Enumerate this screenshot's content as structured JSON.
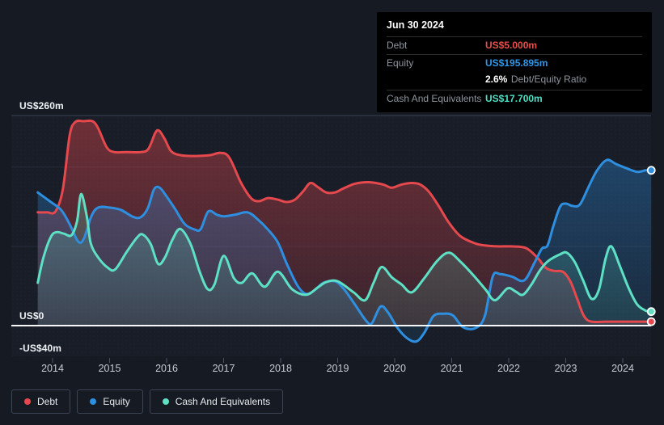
{
  "tooltip": {
    "date": "Jun 30 2024",
    "debt_label": "Debt",
    "debt_value": "US$5.000m",
    "equity_label": "Equity",
    "equity_value": "US$195.895m",
    "ratio_value": "2.6%",
    "ratio_label": "Debt/Equity Ratio",
    "cash_label": "Cash And Equivalents",
    "cash_value": "US$17.700m"
  },
  "axis": {
    "y_top_label": "US$260m",
    "y_zero_label": "US$0",
    "y_neg_label": "-US$40m",
    "years": [
      "2014",
      "2015",
      "2016",
      "2017",
      "2018",
      "2019",
      "2020",
      "2021",
      "2022",
      "2023",
      "2024"
    ]
  },
  "legend": {
    "items": [
      {
        "id": "debt",
        "label": "Debt",
        "color": "#e5484d"
      },
      {
        "id": "equity",
        "label": "Equity",
        "color": "#2e8fe0"
      },
      {
        "id": "cash",
        "label": "Cash And Equivalents",
        "color": "#5ee0c5"
      }
    ]
  },
  "colors": {
    "background": "#151a23",
    "plot_background": "#1c2230",
    "gridline": "#262d3a",
    "gridline_top": "#3a4150",
    "zero_line": "#f5f7f8",
    "tick": "#4a5262",
    "debt": "#e5484d",
    "equity": "#2e8fe0",
    "cash": "#5ee0c5"
  },
  "chart_data": {
    "type": "area",
    "title": "Debt, Equity and Cash And Equivalents history (US$m)",
    "x_unit": "year",
    "x_range": [
      2013.74,
      2024.5
    ],
    "ylim": [
      -40,
      260
    ],
    "y_gridlines": [
      0,
      100,
      200,
      260
    ],
    "grid": true,
    "legend_position": "bottom-left",
    "as_of": {
      "date": "Jun 30 2024",
      "debt": 5.0,
      "equity": 195.895,
      "debt_equity_ratio_pct": 2.6,
      "cash_and_equivalents": 17.7
    },
    "series": [
      {
        "name": "Debt",
        "values": [
          [
            2013.74,
            143
          ],
          [
            2013.9,
            143
          ],
          [
            2014.05,
            144
          ],
          [
            2014.18,
            172
          ],
          [
            2014.3,
            240
          ],
          [
            2014.4,
            257
          ],
          [
            2014.55,
            258
          ],
          [
            2014.7,
            258
          ],
          [
            2014.8,
            249
          ],
          [
            2014.95,
            225
          ],
          [
            2015.08,
            219
          ],
          [
            2015.3,
            219
          ],
          [
            2015.55,
            219
          ],
          [
            2015.68,
            223
          ],
          [
            2015.8,
            243
          ],
          [
            2015.87,
            246
          ],
          [
            2015.97,
            235
          ],
          [
            2016.08,
            220
          ],
          [
            2016.25,
            215
          ],
          [
            2016.5,
            214
          ],
          [
            2016.75,
            215
          ],
          [
            2016.95,
            218
          ],
          [
            2017.1,
            212
          ],
          [
            2017.3,
            181
          ],
          [
            2017.48,
            161
          ],
          [
            2017.62,
            157
          ],
          [
            2017.78,
            161
          ],
          [
            2017.95,
            159
          ],
          [
            2018.1,
            156
          ],
          [
            2018.25,
            159
          ],
          [
            2018.4,
            170
          ],
          [
            2018.52,
            180
          ],
          [
            2018.65,
            175
          ],
          [
            2018.8,
            168
          ],
          [
            2018.95,
            168
          ],
          [
            2019.1,
            173
          ],
          [
            2019.3,
            179
          ],
          [
            2019.55,
            181
          ],
          [
            2019.8,
            178
          ],
          [
            2019.95,
            174
          ],
          [
            2020.12,
            178
          ],
          [
            2020.3,
            180
          ],
          [
            2020.45,
            178
          ],
          [
            2020.6,
            169
          ],
          [
            2020.78,
            150
          ],
          [
            2020.95,
            130
          ],
          [
            2021.15,
            113
          ],
          [
            2021.4,
            104
          ],
          [
            2021.6,
            101
          ],
          [
            2021.8,
            100
          ],
          [
            2022.05,
            100
          ],
          [
            2022.3,
            98
          ],
          [
            2022.5,
            86
          ],
          [
            2022.65,
            73
          ],
          [
            2022.8,
            69
          ],
          [
            2022.95,
            68
          ],
          [
            2023.08,
            56
          ],
          [
            2023.2,
            34
          ],
          [
            2023.32,
            12
          ],
          [
            2023.45,
            5
          ],
          [
            2023.7,
            5
          ],
          [
            2024.0,
            5
          ],
          [
            2024.3,
            5
          ],
          [
            2024.5,
            5
          ]
        ]
      },
      {
        "name": "Equity",
        "values": [
          [
            2013.74,
            168
          ],
          [
            2013.95,
            157
          ],
          [
            2014.15,
            146
          ],
          [
            2014.3,
            128
          ],
          [
            2014.45,
            106
          ],
          [
            2014.55,
            110
          ],
          [
            2014.68,
            138
          ],
          [
            2014.8,
            149
          ],
          [
            2015.0,
            149
          ],
          [
            2015.2,
            146
          ],
          [
            2015.42,
            137
          ],
          [
            2015.55,
            137
          ],
          [
            2015.67,
            148
          ],
          [
            2015.78,
            172
          ],
          [
            2015.88,
            174
          ],
          [
            2016.0,
            163
          ],
          [
            2016.15,
            147
          ],
          [
            2016.32,
            128
          ],
          [
            2016.5,
            121
          ],
          [
            2016.6,
            122
          ],
          [
            2016.73,
            144
          ],
          [
            2016.88,
            140
          ],
          [
            2017.0,
            138
          ],
          [
            2017.2,
            140
          ],
          [
            2017.42,
            143
          ],
          [
            2017.6,
            134
          ],
          [
            2017.78,
            121
          ],
          [
            2017.95,
            105
          ],
          [
            2018.12,
            76
          ],
          [
            2018.3,
            50
          ],
          [
            2018.45,
            40
          ],
          [
            2018.6,
            45
          ],
          [
            2018.75,
            54
          ],
          [
            2018.95,
            56
          ],
          [
            2019.1,
            47
          ],
          [
            2019.3,
            27
          ],
          [
            2019.5,
            6
          ],
          [
            2019.6,
            3
          ],
          [
            2019.75,
            24
          ],
          [
            2019.88,
            17
          ],
          [
            2020.05,
            -3
          ],
          [
            2020.22,
            -16
          ],
          [
            2020.38,
            -20
          ],
          [
            2020.52,
            -9
          ],
          [
            2020.68,
            12
          ],
          [
            2020.85,
            15
          ],
          [
            2021.02,
            13
          ],
          [
            2021.2,
            -2
          ],
          [
            2021.42,
            -3
          ],
          [
            2021.58,
            12
          ],
          [
            2021.72,
            62
          ],
          [
            2021.85,
            65
          ],
          [
            2022.05,
            62
          ],
          [
            2022.27,
            57
          ],
          [
            2022.45,
            79
          ],
          [
            2022.58,
            97
          ],
          [
            2022.68,
            101
          ],
          [
            2022.78,
            125
          ],
          [
            2022.9,
            150
          ],
          [
            2023.0,
            154
          ],
          [
            2023.12,
            151
          ],
          [
            2023.25,
            153
          ],
          [
            2023.4,
            175
          ],
          [
            2023.55,
            196
          ],
          [
            2023.72,
            209
          ],
          [
            2023.88,
            204
          ],
          [
            2024.05,
            199
          ],
          [
            2024.25,
            194
          ],
          [
            2024.4,
            196
          ],
          [
            2024.5,
            196
          ]
        ]
      },
      {
        "name": "Cash And Equivalents",
        "values": [
          [
            2013.74,
            54
          ],
          [
            2013.84,
            86
          ],
          [
            2013.97,
            112
          ],
          [
            2014.07,
            118
          ],
          [
            2014.2,
            116
          ],
          [
            2014.33,
            114
          ],
          [
            2014.43,
            132
          ],
          [
            2014.5,
            166
          ],
          [
            2014.6,
            138
          ],
          [
            2014.67,
            104
          ],
          [
            2014.8,
            86
          ],
          [
            2014.97,
            73
          ],
          [
            2015.1,
            71
          ],
          [
            2015.3,
            93
          ],
          [
            2015.48,
            111
          ],
          [
            2015.58,
            115
          ],
          [
            2015.72,
            103
          ],
          [
            2015.85,
            78
          ],
          [
            2015.97,
            86
          ],
          [
            2016.1,
            108
          ],
          [
            2016.24,
            122
          ],
          [
            2016.42,
            103
          ],
          [
            2016.58,
            68
          ],
          [
            2016.72,
            46
          ],
          [
            2016.84,
            52
          ],
          [
            2017.0,
            88
          ],
          [
            2017.18,
            60
          ],
          [
            2017.32,
            54
          ],
          [
            2017.5,
            66
          ],
          [
            2017.72,
            49
          ],
          [
            2017.95,
            68
          ],
          [
            2018.2,
            46
          ],
          [
            2018.45,
            39
          ],
          [
            2018.65,
            48
          ],
          [
            2018.8,
            55
          ],
          [
            2019.0,
            56
          ],
          [
            2019.28,
            42
          ],
          [
            2019.48,
            32
          ],
          [
            2019.63,
            54
          ],
          [
            2019.77,
            74
          ],
          [
            2019.95,
            61
          ],
          [
            2020.12,
            52
          ],
          [
            2020.3,
            42
          ],
          [
            2020.52,
            60
          ],
          [
            2020.75,
            82
          ],
          [
            2020.95,
            92
          ],
          [
            2021.15,
            81
          ],
          [
            2021.4,
            62
          ],
          [
            2021.6,
            45
          ],
          [
            2021.76,
            32
          ],
          [
            2021.98,
            47
          ],
          [
            2022.12,
            43
          ],
          [
            2022.25,
            39
          ],
          [
            2022.4,
            52
          ],
          [
            2022.55,
            70
          ],
          [
            2022.7,
            82
          ],
          [
            2022.9,
            90
          ],
          [
            2023.02,
            92
          ],
          [
            2023.16,
            80
          ],
          [
            2023.3,
            58
          ],
          [
            2023.45,
            34
          ],
          [
            2023.58,
            45
          ],
          [
            2023.7,
            85
          ],
          [
            2023.8,
            100
          ],
          [
            2023.95,
            75
          ],
          [
            2024.1,
            48
          ],
          [
            2024.25,
            27
          ],
          [
            2024.4,
            19
          ],
          [
            2024.5,
            17.7
          ]
        ]
      }
    ]
  }
}
